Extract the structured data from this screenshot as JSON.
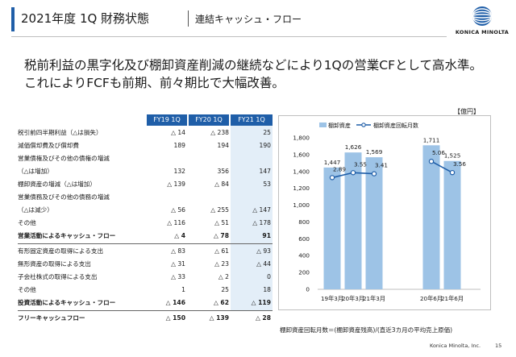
{
  "header": {
    "title": "2021年度 1Q 財務状態",
    "subtitle": "連結キャッシュ・フロー",
    "logo_text": "KONICA MINOLTA"
  },
  "lead": {
    "line1": "税前利益の黒字化及び棚卸資産削減の継続などにより1Qの営業CFとして高水準。",
    "line2": "これによりFCFも前期、前々期比で大幅改善。"
  },
  "table": {
    "headers": [
      "FY19 1Q",
      "FY20 1Q",
      "FY21 1Q"
    ],
    "rows": [
      {
        "label": "税引前四半期利益（△は損失）",
        "v": [
          "△ 14",
          "△ 238",
          "25"
        ],
        "bold": false
      },
      {
        "label": "減価償却費及び償却費",
        "v": [
          "189",
          "194",
          "190"
        ],
        "bold": false
      },
      {
        "label": "営業債権及びその他の債権の増減",
        "v": [
          "",
          "",
          ""
        ],
        "bold": false
      },
      {
        "label": "（△は増加）",
        "v": [
          "132",
          "356",
          "147"
        ],
        "bold": false
      },
      {
        "label": "棚卸資産の増減（△は増加）",
        "v": [
          "△ 139",
          "△ 84",
          "53"
        ],
        "bold": false
      },
      {
        "label": "営業債務及びその他の債務の増減",
        "v": [
          "",
          "",
          ""
        ],
        "bold": false
      },
      {
        "label": "（△は減少）",
        "v": [
          "△ 56",
          "△ 255",
          "△ 147"
        ],
        "bold": false
      },
      {
        "label": "その他",
        "v": [
          "△ 116",
          "△ 51",
          "△ 178"
        ],
        "bold": false
      },
      {
        "label": "営業活動によるキャッシュ・フロー",
        "v": [
          "△ 4",
          "△ 78",
          "91"
        ],
        "bold": true
      },
      {
        "label": "有形固定資産の取得による支出",
        "v": [
          "△ 83",
          "△ 61",
          "△ 93"
        ],
        "bold": false
      },
      {
        "label": "無形資産の取得による支出",
        "v": [
          "△ 31",
          "△ 23",
          "△ 44"
        ],
        "bold": false
      },
      {
        "label": "子会社株式の取得による支出",
        "v": [
          "△ 33",
          "△ 2",
          "0"
        ],
        "bold": false
      },
      {
        "label": "その他",
        "v": [
          "1",
          "25",
          "18"
        ],
        "bold": false
      },
      {
        "label": "投資活動によるキャッシュ・フロー",
        "v": [
          "△ 146",
          "△ 62",
          "△ 119"
        ],
        "bold": true
      },
      {
        "label": "フリーキャッシュフロー",
        "v": [
          "△ 150",
          "△ 139",
          "△ 28"
        ],
        "bold": true
      }
    ]
  },
  "chart_unit": "【億円】",
  "chart_data": {
    "type": "bar",
    "title": "",
    "categories": [
      "19年3月",
      "20年3月",
      "21年3月",
      "20年6月",
      "21年6月"
    ],
    "series": [
      {
        "name": "棚卸資産",
        "type": "bar",
        "axis": "left",
        "values": [
          1447,
          1626,
          1569,
          1711,
          1525
        ],
        "color": "#9dc3e6"
      },
      {
        "name": "棚卸資産回転月数",
        "type": "line",
        "axis": "right",
        "values": [
          2.89,
          3.55,
          3.41,
          5.06,
          3.56
        ],
        "color": "#1f5ea8",
        "line_groups": [
          [
            0,
            1,
            2
          ],
          [
            3,
            4
          ]
        ]
      }
    ],
    "value_labels_bar": [
      "1,447",
      "1,626",
      "1,569",
      "1,711",
      "1,525"
    ],
    "value_labels_line": [
      "2.89",
      "3.55",
      "3.41",
      "5.06",
      "3.56"
    ],
    "ylim": [
      0,
      1800
    ],
    "ytick_labels": [
      "0",
      "200",
      "400",
      "600",
      "800",
      "1,000",
      "1,200",
      "1,400",
      "1,600",
      "1,800"
    ],
    "y2lim": [
      -12.0,
      8.2
    ],
    "legend": {
      "bar": "棚卸資産",
      "line": "棚卸資産回転月数"
    },
    "grid": false
  },
  "footnote": "棚卸資産回転月数＝(棚卸資産残高)/(直近3カ月の平均売上原価)",
  "footer": {
    "company": "Konica Minolta, Inc.",
    "page": "15"
  }
}
